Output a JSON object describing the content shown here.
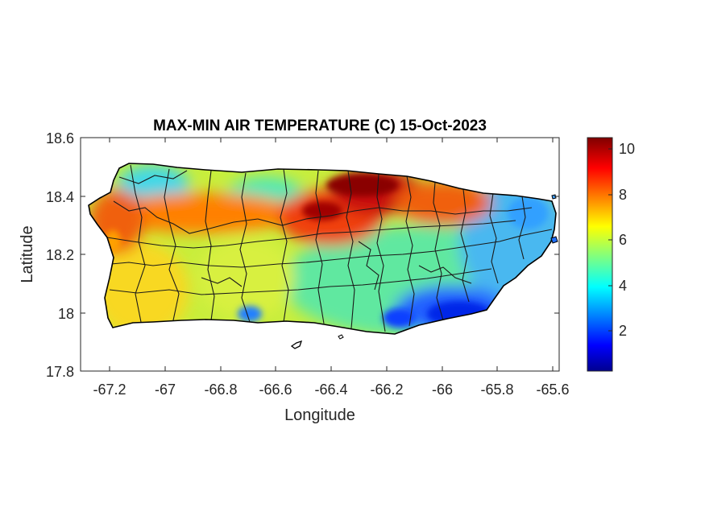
{
  "title": "MAX-MIN AIR TEMPERATURE (C) 15-Oct-2023",
  "xlabel": "Longitude",
  "ylabel": "Latitude",
  "x_ticks": [
    "-67.2",
    "-67",
    "-66.8",
    "-66.6",
    "-66.4",
    "-66.2",
    "-66",
    "-65.8",
    "-65.6"
  ],
  "y_ticks": [
    "18.6",
    "18.4",
    "18.2",
    "18",
    "17.8"
  ],
  "colorbar_ticks": [
    "10",
    "8",
    "6",
    "4",
    "2"
  ],
  "chart_data": {
    "type": "heatmap",
    "title": "MAX-MIN AIR TEMPERATURE (C) 15-Oct-2023",
    "xlabel": "Longitude",
    "ylabel": "Latitude",
    "xlim": [
      -67.3,
      -65.59
    ],
    "ylim": [
      17.8,
      18.6
    ],
    "x_ticks": [
      -67.2,
      -67,
      -66.8,
      -66.6,
      -66.4,
      -66.2,
      -66,
      -65.8,
      -65.6
    ],
    "y_ticks": [
      18.6,
      18.4,
      18.2,
      18,
      17.8
    ],
    "colormap": "jet",
    "clim": [
      0.2,
      10.6
    ],
    "colorbar_ticks": [
      2,
      4,
      6,
      8,
      10
    ],
    "region": "Puerto Rico",
    "grid": false,
    "regional_values": [
      {
        "area": "northwest coast",
        "lon": -67.15,
        "lat": 18.36,
        "value": 8.6
      },
      {
        "area": "west interior",
        "lon": -66.95,
        "lat": 18.32,
        "value": 8.5
      },
      {
        "area": "north-west hills",
        "lon": -66.95,
        "lat": 18.46,
        "value": 4.5
      },
      {
        "area": "north-central hills",
        "lon": -66.62,
        "lat": 18.41,
        "value": 4.8
      },
      {
        "area": "north-central coast",
        "lon": -66.4,
        "lat": 18.4,
        "value": 9.8
      },
      {
        "area": "north coast",
        "lon": -66.2,
        "lat": 18.43,
        "value": 10.3
      },
      {
        "area": "northeast coast",
        "lon": -66.05,
        "lat": 18.39,
        "value": 9.0
      },
      {
        "area": "east coast",
        "lon": -65.75,
        "lat": 18.27,
        "value": 3.5
      },
      {
        "area": "central interior",
        "lon": -66.5,
        "lat": 18.2,
        "value": 6.0
      },
      {
        "area": "southwest",
        "lon": -67.1,
        "lat": 18.05,
        "value": 7.0
      },
      {
        "area": "south-central coast",
        "lon": -66.5,
        "lat": 17.98,
        "value": 5.2
      },
      {
        "area": "southeast coast",
        "lon": -66.05,
        "lat": 18.02,
        "value": 2.5
      },
      {
        "area": "south coast",
        "lon": -66.2,
        "lat": 17.96,
        "value": 1.8
      }
    ]
  }
}
